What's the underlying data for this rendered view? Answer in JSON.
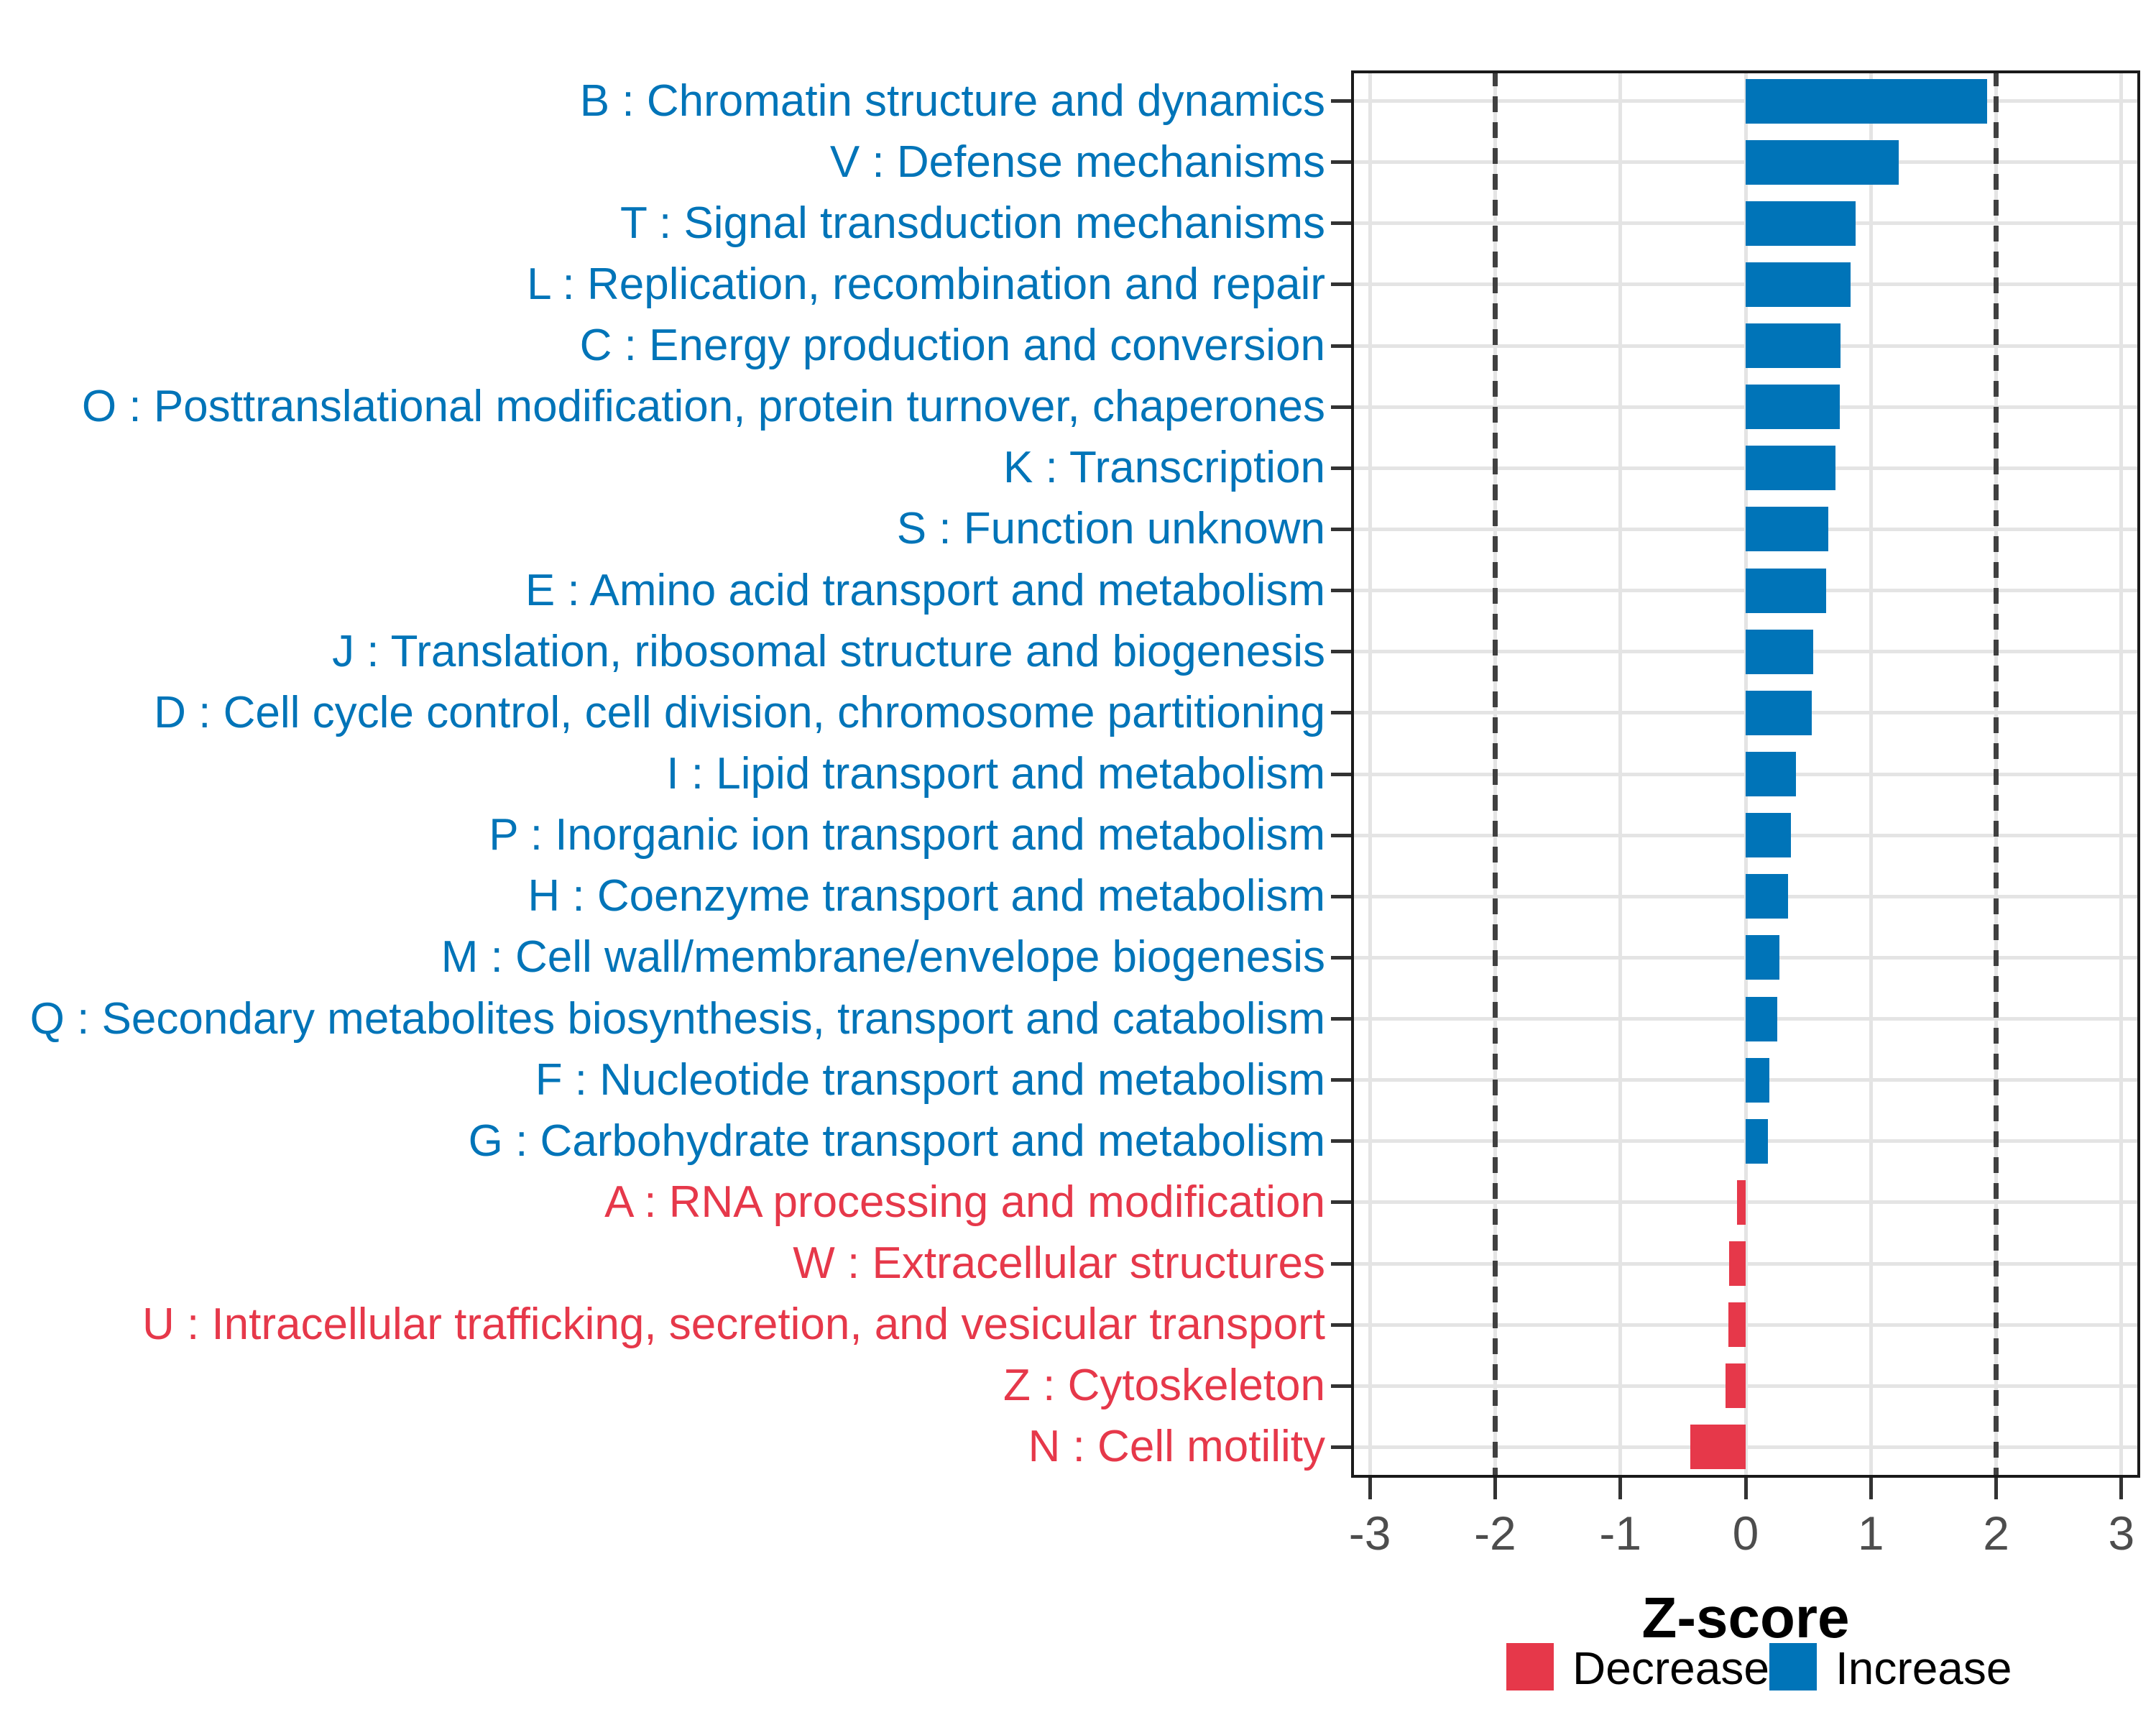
{
  "chart_data": {
    "type": "bar",
    "orientation": "horizontal",
    "title": "",
    "xlabel": "Z-score",
    "ylabel": "",
    "xlim": [
      -3.15,
      3.15
    ],
    "x_ticks": [
      -3,
      -2,
      -1,
      0,
      1,
      2,
      3
    ],
    "reference_lines": [
      -2,
      2
    ],
    "grid": "major-on",
    "legend_position": "bottom-right",
    "colors": {
      "increase": "#0074B8",
      "decrease": "#E6384A"
    },
    "categories": [
      {
        "label": "B : Chromatin structure and dynamics",
        "value": 1.93,
        "direction": "increase"
      },
      {
        "label": "V : Defense mechanisms",
        "value": 1.22,
        "direction": "increase"
      },
      {
        "label": "T : Signal transduction mechanisms",
        "value": 0.88,
        "direction": "increase"
      },
      {
        "label": "L : Replication, recombination and repair",
        "value": 0.84,
        "direction": "increase"
      },
      {
        "label": "C : Energy production and conversion",
        "value": 0.76,
        "direction": "increase"
      },
      {
        "label": "O : Posttranslational modification, protein turnover, chaperones",
        "value": 0.75,
        "direction": "increase"
      },
      {
        "label": "K : Transcription",
        "value": 0.72,
        "direction": "increase"
      },
      {
        "label": "S : Function unknown",
        "value": 0.66,
        "direction": "increase"
      },
      {
        "label": "E : Amino acid transport and metabolism",
        "value": 0.64,
        "direction": "increase"
      },
      {
        "label": "J : Translation, ribosomal structure and biogenesis",
        "value": 0.54,
        "direction": "increase"
      },
      {
        "label": "D : Cell cycle control, cell division, chromosome partitioning",
        "value": 0.53,
        "direction": "increase"
      },
      {
        "label": "I : Lipid transport and metabolism",
        "value": 0.4,
        "direction": "increase"
      },
      {
        "label": "P : Inorganic ion transport and metabolism",
        "value": 0.36,
        "direction": "increase"
      },
      {
        "label": "H : Coenzyme transport and metabolism",
        "value": 0.34,
        "direction": "increase"
      },
      {
        "label": "M : Cell wall/membrane/envelope biogenesis",
        "value": 0.27,
        "direction": "increase"
      },
      {
        "label": "Q : Secondary metabolites biosynthesis, transport and catabolism",
        "value": 0.25,
        "direction": "increase"
      },
      {
        "label": "F : Nucleotide transport and metabolism",
        "value": 0.19,
        "direction": "increase"
      },
      {
        "label": "G : Carbohydrate transport and metabolism",
        "value": 0.18,
        "direction": "increase"
      },
      {
        "label": "A : RNA processing and modification",
        "value": -0.07,
        "direction": "decrease"
      },
      {
        "label": "W : Extracellular structures",
        "value": -0.13,
        "direction": "decrease"
      },
      {
        "label": "U : Intracellular trafficking, secretion, and vesicular transport",
        "value": -0.14,
        "direction": "decrease"
      },
      {
        "label": "Z : Cytoskeleton",
        "value": -0.16,
        "direction": "decrease"
      },
      {
        "label": "N : Cell motility",
        "value": -0.44,
        "direction": "decrease"
      }
    ],
    "legend": {
      "entries": [
        {
          "label": "Decrease",
          "color": "#E6384A"
        },
        {
          "label": "Increase",
          "color": "#0074B8"
        }
      ]
    }
  }
}
